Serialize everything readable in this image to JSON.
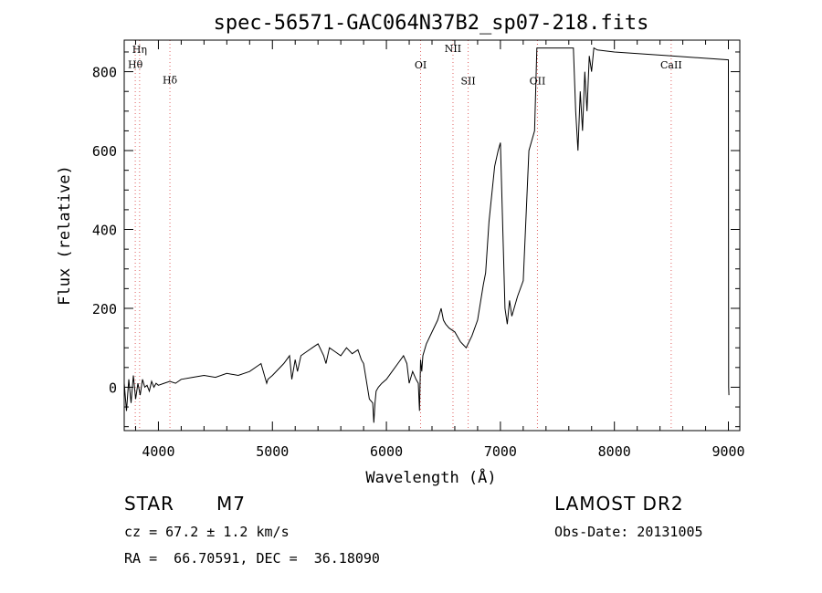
{
  "chart_data": {
    "type": "line",
    "title": "spec-56571-GAC064N37B2_sp07-218.fits",
    "xlabel": "Wavelength (Å)",
    "ylabel": "Flux (relative)",
    "xlim": [
      3700,
      9100
    ],
    "ylim": [
      -110,
      880
    ],
    "x_ticks": [
      "4000",
      "5000",
      "6000",
      "7000",
      "8000",
      "9000"
    ],
    "y_ticks": [
      "0",
      "200",
      "400",
      "600",
      "800"
    ],
    "x_tick_values": [
      4000,
      5000,
      6000,
      7000,
      8000,
      9000
    ],
    "y_tick_values": [
      0,
      200,
      400,
      600,
      800
    ],
    "series": [
      {
        "name": "flux",
        "x": [
          3700,
          3720,
          3740,
          3760,
          3780,
          3800,
          3820,
          3840,
          3860,
          3880,
          3900,
          3920,
          3940,
          3960,
          3980,
          4000,
          4050,
          4100,
          4150,
          4200,
          4300,
          4400,
          4500,
          4600,
          4700,
          4800,
          4900,
          4950,
          4960,
          5000,
          5100,
          5150,
          5170,
          5200,
          5220,
          5250,
          5300,
          5350,
          5400,
          5450,
          5470,
          5500,
          5550,
          5600,
          5650,
          5700,
          5750,
          5780,
          5800,
          5850,
          5880,
          5890,
          5900,
          5910,
          5930,
          5960,
          6000,
          6050,
          6100,
          6150,
          6180,
          6200,
          6230,
          6260,
          6280,
          6290,
          6300,
          6310,
          6320,
          6350,
          6400,
          6450,
          6480,
          6500,
          6520,
          6550,
          6600,
          6650,
          6700,
          6750,
          6800,
          6850,
          6870,
          6900,
          6950,
          6980,
          7000,
          7040,
          7060,
          7080,
          7100,
          7150,
          7200,
          7250,
          7300,
          7320,
          7340,
          7350,
          7400,
          7500,
          7600,
          7640,
          7660,
          7680,
          7700,
          7720,
          7740,
          7760,
          7780,
          7800,
          7820,
          7850,
          8000,
          8500,
          9000,
          9002,
          9005
        ],
        "y": [
          10,
          -60,
          20,
          -40,
          30,
          -30,
          10,
          -20,
          20,
          0,
          5,
          -10,
          15,
          0,
          10,
          5,
          10,
          15,
          10,
          20,
          25,
          30,
          25,
          35,
          30,
          40,
          60,
          10,
          20,
          30,
          60,
          80,
          20,
          70,
          40,
          80,
          90,
          100,
          110,
          80,
          60,
          100,
          90,
          80,
          100,
          85,
          95,
          70,
          60,
          -30,
          -40,
          -90,
          -40,
          -10,
          0,
          10,
          20,
          40,
          60,
          80,
          60,
          10,
          40,
          20,
          10,
          -60,
          70,
          40,
          80,
          110,
          140,
          170,
          200,
          170,
          160,
          150,
          140,
          115,
          100,
          130,
          170,
          260,
          290,
          420,
          560,
          600,
          620,
          200,
          160,
          220,
          180,
          230,
          270,
          600,
          650,
          860,
          860,
          860,
          860,
          860,
          860,
          860,
          700,
          600,
          750,
          650,
          800,
          700,
          840,
          800,
          860,
          855,
          850,
          840,
          830,
          0,
          -20
        ]
      }
    ],
    "lines": [
      {
        "name": "Hη",
        "x": 3835,
        "label_y": 848
      },
      {
        "name": "Hθ",
        "x": 3797,
        "label_y": 810
      },
      {
        "name": "Hδ",
        "x": 4101,
        "label_y": 770
      },
      {
        "name": "OI",
        "x": 6300,
        "label_y": 808
      },
      {
        "name": "NII",
        "x": 6584,
        "label_y": 850
      },
      {
        "name": "SII",
        "x": 6717,
        "label_y": 768
      },
      {
        "name": "OII",
        "x": 7325,
        "label_y": 768
      },
      {
        "name": "CaII",
        "x": 8498,
        "label_y": 808
      }
    ]
  },
  "info": {
    "object_type": "STAR",
    "subclass": "M7",
    "survey": "LAMOST DR2",
    "cz": "cz = 67.2 ± 1.2 km/s",
    "obs_date": "Obs-Date: 20131005",
    "coords": "RA =  66.70591, DEC =  36.18090"
  }
}
